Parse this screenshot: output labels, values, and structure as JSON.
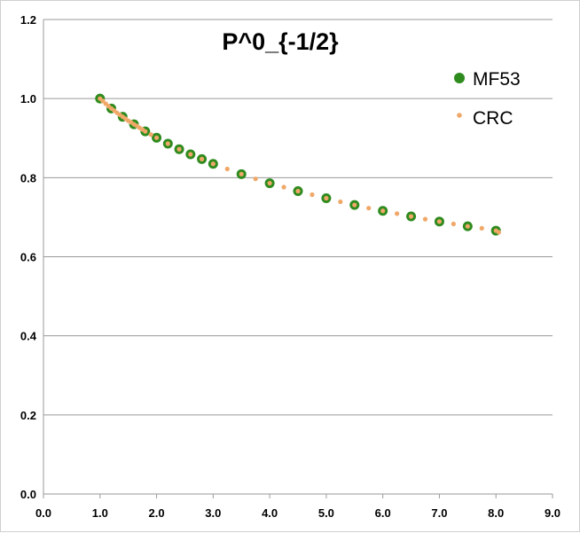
{
  "chart_data": {
    "type": "scatter",
    "title": "P^0_{-1/2}",
    "xlabel": "",
    "ylabel": "",
    "xlim": [
      0,
      9
    ],
    "ylim": [
      0,
      1.2
    ],
    "x_ticks": [
      "0.0",
      "1.0",
      "2.0",
      "3.0",
      "4.0",
      "5.0",
      "6.0",
      "7.0",
      "8.0",
      "9.0"
    ],
    "y_ticks": [
      "0.0",
      "0.2",
      "0.4",
      "0.6",
      "0.8",
      "1.0",
      "1.2"
    ],
    "grid": "horizontal",
    "legend_position": "top-right",
    "series": [
      {
        "name": "MF53",
        "marker": "large-circle",
        "color": "#2e8b1e",
        "points": [
          [
            1.0,
            1.0
          ],
          [
            1.2,
            0.975
          ],
          [
            1.4,
            0.954
          ],
          [
            1.6,
            0.935
          ],
          [
            1.8,
            0.917
          ],
          [
            2.0,
            0.901
          ],
          [
            2.2,
            0.886
          ],
          [
            2.4,
            0.872
          ],
          [
            2.6,
            0.859
          ],
          [
            2.8,
            0.847
          ],
          [
            3.0,
            0.835
          ],
          [
            3.5,
            0.809
          ],
          [
            4.0,
            0.786
          ],
          [
            4.5,
            0.766
          ],
          [
            5.0,
            0.748
          ],
          [
            5.5,
            0.731
          ],
          [
            6.0,
            0.716
          ],
          [
            6.5,
            0.702
          ],
          [
            7.0,
            0.689
          ],
          [
            7.5,
            0.677
          ],
          [
            8.0,
            0.666
          ]
        ]
      },
      {
        "name": "CRC",
        "marker": "small-dot",
        "color": "#f0a868",
        "points": [
          [
            1.0,
            1.0
          ],
          [
            1.05,
            0.994
          ],
          [
            1.1,
            0.987
          ],
          [
            1.15,
            0.981
          ],
          [
            1.2,
            0.975
          ],
          [
            1.25,
            0.97
          ],
          [
            1.3,
            0.964
          ],
          [
            1.35,
            0.959
          ],
          [
            1.4,
            0.954
          ],
          [
            1.45,
            0.949
          ],
          [
            1.5,
            0.944
          ],
          [
            1.55,
            0.94
          ],
          [
            1.6,
            0.935
          ],
          [
            1.65,
            0.931
          ],
          [
            1.7,
            0.926
          ],
          [
            1.75,
            0.922
          ],
          [
            1.8,
            0.917
          ],
          [
            1.9,
            0.909
          ],
          [
            2.0,
            0.901
          ],
          [
            2.2,
            0.886
          ],
          [
            2.4,
            0.872
          ],
          [
            2.6,
            0.859
          ],
          [
            2.8,
            0.847
          ],
          [
            3.0,
            0.835
          ],
          [
            3.25,
            0.822
          ],
          [
            3.5,
            0.809
          ],
          [
            3.75,
            0.797
          ],
          [
            4.0,
            0.786
          ],
          [
            4.25,
            0.776
          ],
          [
            4.5,
            0.766
          ],
          [
            4.75,
            0.757
          ],
          [
            5.0,
            0.748
          ],
          [
            5.25,
            0.739
          ],
          [
            5.5,
            0.731
          ],
          [
            5.75,
            0.723
          ],
          [
            6.0,
            0.716
          ],
          [
            6.25,
            0.709
          ],
          [
            6.5,
            0.702
          ],
          [
            6.75,
            0.695
          ],
          [
            7.0,
            0.689
          ],
          [
            7.25,
            0.683
          ],
          [
            7.5,
            0.677
          ],
          [
            7.75,
            0.672
          ],
          [
            8.0,
            0.666
          ],
          [
            8.05,
            0.662
          ]
        ]
      }
    ]
  }
}
